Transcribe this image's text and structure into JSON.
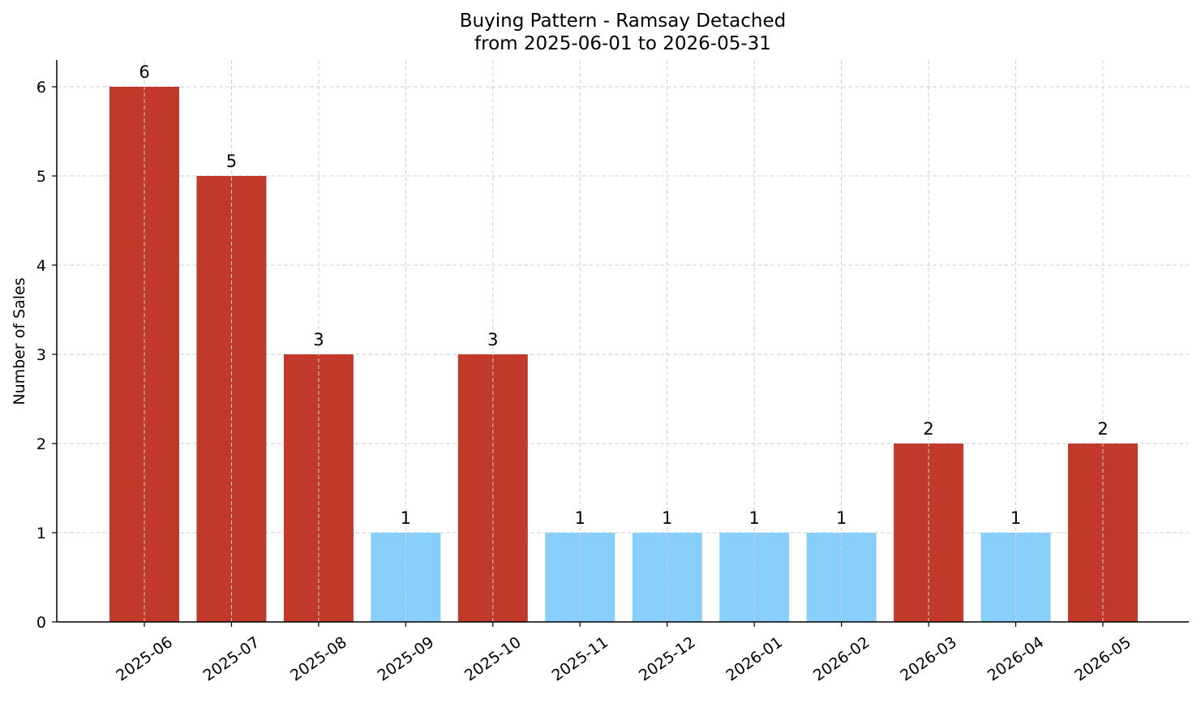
{
  "chart_data": {
    "type": "bar",
    "title": "Buying Pattern - Ramsay Detached",
    "subtitle": "from 2025-06-01 to 2026-05-31",
    "xlabel": "",
    "ylabel": "Number of Sales",
    "categories": [
      "2025-06",
      "2025-07",
      "2025-08",
      "2025-09",
      "2025-10",
      "2025-11",
      "2025-12",
      "2026-01",
      "2026-02",
      "2026-03",
      "2026-04",
      "2026-05"
    ],
    "values": [
      6,
      5,
      3,
      1,
      3,
      1,
      1,
      1,
      1,
      2,
      1,
      2
    ],
    "value_labels": [
      "6",
      "5",
      "3",
      "1",
      "3",
      "1",
      "1",
      "1",
      "1",
      "2",
      "1",
      "2"
    ],
    "bar_colors": [
      "#c0392b",
      "#c0392b",
      "#c0392b",
      "#87cefa",
      "#c0392b",
      "#87cefa",
      "#87cefa",
      "#87cefa",
      "#87cefa",
      "#c0392b",
      "#87cefa",
      "#c0392b"
    ],
    "ylim": [
      0,
      6.3
    ],
    "yticks": [
      "0",
      "1",
      "2",
      "3",
      "4",
      "5",
      "6"
    ],
    "grid": true
  }
}
